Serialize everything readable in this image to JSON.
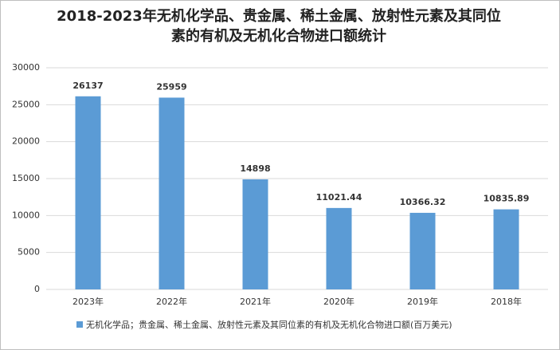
{
  "chart_data": {
    "type": "bar",
    "title": "2018-2023年无机化学品、贵金属、稀土金属、放射性元素及其同位素的有机及无机化合物进口额统计",
    "categories": [
      "2023年",
      "2022年",
      "2021年",
      "2020年",
      "2019年",
      "2018年"
    ],
    "series": [
      {
        "name": "无机化学品；贵金属、稀土金属、放射性元素及其同位素的有机及无机化合物进口额(百万美元)",
        "color": "#5b9bd5",
        "values": [
          26137,
          25959,
          14898,
          11021.44,
          10366.32,
          10835.89
        ]
      }
    ],
    "ylim": [
      0,
      30000
    ],
    "yticks": [
      0,
      5000,
      10000,
      15000,
      20000,
      25000,
      30000
    ],
    "grid": true,
    "legend": "bottom"
  }
}
